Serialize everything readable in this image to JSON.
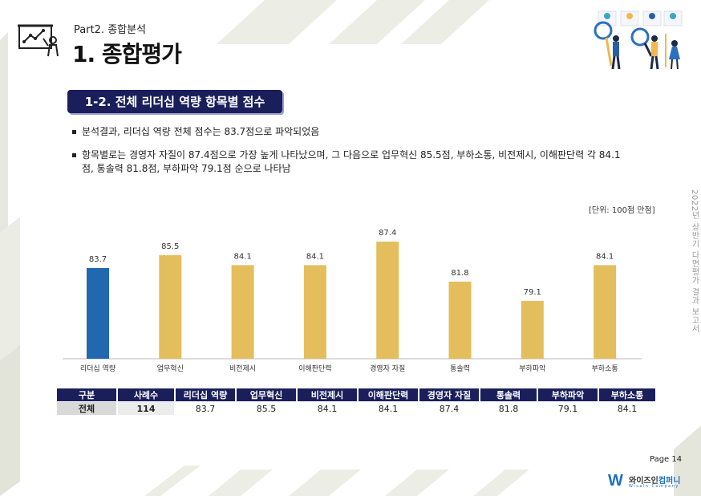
{
  "header": {
    "part_label": "Part2. 종합분석",
    "title": "1. 종합평가",
    "icon": "presentation-chart-icon",
    "illustration": "analysts-magnifier-illustration"
  },
  "section": {
    "title": "1-2. 전체 리더십 역량 항목별 점수"
  },
  "bullets": [
    "분석결과, 리더십 역량 전체 점수는 83.7점으로 파악되었음",
    "항목별로는 경영자 자질이 87.4점으로 가장 높게 나타났으며, 그 다음으로 업무혁신 85.5점, 부하소통, 비전제시, 이해판단력 각 84.1점, 통솔력 81.8점, 부하파악 79.1점 순으로 나타남"
  ],
  "unit_note": "[단위: 100점 만점]",
  "side_text": "2022년 상반기 다면평가 결과 보고서",
  "colors": {
    "highlight": "#2268b0",
    "bar": "#e4bd5c",
    "navy": "#1a1f5c"
  },
  "chart_data": {
    "type": "bar",
    "categories": [
      "리더십 역량",
      "업무혁신",
      "비전제시",
      "이해판단력",
      "경영자 자질",
      "통솔력",
      "부하파악",
      "부하소통"
    ],
    "values": [
      83.7,
      85.5,
      84.1,
      84.1,
      87.4,
      81.8,
      79.1,
      84.1
    ],
    "highlight_index": 0,
    "ylim": [
      71,
      89
    ],
    "title": "",
    "xlabel": "",
    "ylabel": "",
    "grid": false
  },
  "table": {
    "headers": [
      "구분",
      "사례수",
      "리더십 역량",
      "업무혁신",
      "비전제시",
      "이해판단력",
      "경영자 자질",
      "통솔력",
      "부하파악",
      "부하소통"
    ],
    "rows": [
      [
        "전체",
        "114",
        "83.7",
        "85.5",
        "84.1",
        "84.1",
        "87.4",
        "81.8",
        "79.1",
        "84.1"
      ]
    ]
  },
  "footer": {
    "page_label": "Page  14",
    "logo_mark": "W",
    "logo_text_a": "와이즈인",
    "logo_text_b": "컴퍼니",
    "logo_sub": "Wiseln Company"
  }
}
